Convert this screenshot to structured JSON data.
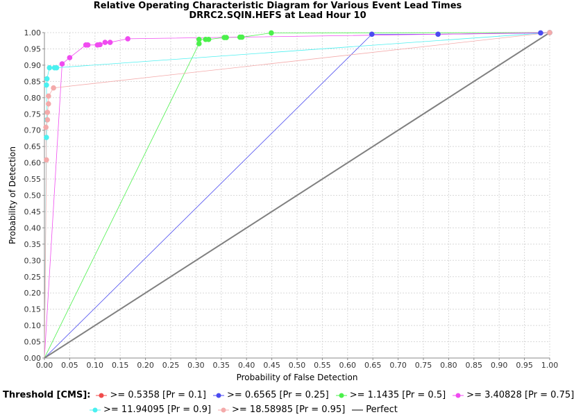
{
  "title_line1": "Relative Operating Characteristic Diagram for Various Event Lead Times",
  "title_line2": "DRRC2.SQIN.HEFS at Lead Hour 10",
  "legend_title": "Threshold [CMS]:",
  "chart_data": {
    "type": "scatter",
    "title": "Relative Operating Characteristic Diagram for Various Event Lead Times",
    "subtitle": "DRRC2.SQIN.HEFS at Lead Hour 10",
    "xlabel": "Probability of False Detection",
    "ylabel": "Probability of Detection",
    "xlim": [
      0,
      1
    ],
    "ylim": [
      0,
      1
    ],
    "xticks": [
      "0.00",
      "0.05",
      "0.10",
      "0.15",
      "0.20",
      "0.25",
      "0.30",
      "0.35",
      "0.40",
      "0.45",
      "0.50",
      "0.55",
      "0.60",
      "0.65",
      "0.70",
      "0.75",
      "0.80",
      "0.85",
      "0.90",
      "0.95",
      "1.00"
    ],
    "yticks": [
      "0.00",
      "0.05",
      "0.10",
      "0.15",
      "0.20",
      "0.25",
      "0.30",
      "0.35",
      "0.40",
      "0.45",
      "0.50",
      "0.55",
      "0.60",
      "0.65",
      "0.70",
      "0.75",
      "0.80",
      "0.85",
      "0.90",
      "0.95",
      "1.00"
    ],
    "grid": true,
    "legend_position": "bottom",
    "series": [
      {
        "name": ">= 0.5358 [Pr = 0.1]",
        "color": "#f04b4b",
        "points": [
          [
            0,
            0
          ],
          [
            1.0,
            1.0
          ]
        ]
      },
      {
        "name": ">= 0.6565 [Pr = 0.25]",
        "color": "#4b4bf0",
        "points": [
          [
            0,
            0
          ],
          [
            0.648,
            0.995
          ],
          [
            0.779,
            0.995
          ],
          [
            0.982,
            0.999
          ],
          [
            1.0,
            1.0
          ]
        ]
      },
      {
        "name": ">= 1.1435 [Pr = 0.5]",
        "color": "#4bf04b",
        "points": [
          [
            0,
            0
          ],
          [
            0.306,
            0.966
          ],
          [
            0.306,
            0.979
          ],
          [
            0.319,
            0.979
          ],
          [
            0.325,
            0.979
          ],
          [
            0.356,
            0.985
          ],
          [
            0.36,
            0.985
          ],
          [
            0.387,
            0.986
          ],
          [
            0.391,
            0.986
          ],
          [
            0.449,
            0.999
          ],
          [
            1.0,
            1.0
          ]
        ]
      },
      {
        "name": ">= 3.40828 [Pr = 0.75]",
        "color": "#f04bf0",
        "points": [
          [
            0,
            0
          ],
          [
            0.035,
            0.904
          ],
          [
            0.05,
            0.923
          ],
          [
            0.082,
            0.962
          ],
          [
            0.086,
            0.962
          ],
          [
            0.105,
            0.962
          ],
          [
            0.11,
            0.963
          ],
          [
            0.12,
            0.97
          ],
          [
            0.13,
            0.97
          ],
          [
            0.165,
            0.981
          ],
          [
            1.0,
            1.0
          ]
        ]
      },
      {
        "name": ">= 11.94095 [Pr = 0.9]",
        "color": "#4bf0f0",
        "points": [
          [
            0,
            0
          ],
          [
            0.004,
            0.678
          ],
          [
            0.005,
            0.732
          ],
          [
            0.004,
            0.839
          ],
          [
            0.005,
            0.858
          ],
          [
            0.01,
            0.892
          ],
          [
            0.02,
            0.892
          ],
          [
            0.024,
            0.892
          ],
          [
            1.0,
            1.0
          ]
        ]
      },
      {
        "name": ">= 18.58985 [Pr = 0.95]",
        "color": "#f4aaaa",
        "points": [
          [
            0,
            0
          ],
          [
            0.004,
            0.609
          ],
          [
            0.003,
            0.709
          ],
          [
            0.006,
            0.732
          ],
          [
            0.006,
            0.755
          ],
          [
            0.008,
            0.781
          ],
          [
            0.008,
            0.805
          ],
          [
            0.018,
            0.83
          ],
          [
            1.0,
            1.0
          ]
        ]
      },
      {
        "name": "Perfect",
        "color": "#808080",
        "points": [
          [
            0,
            0
          ],
          [
            1,
            1
          ]
        ]
      }
    ]
  }
}
